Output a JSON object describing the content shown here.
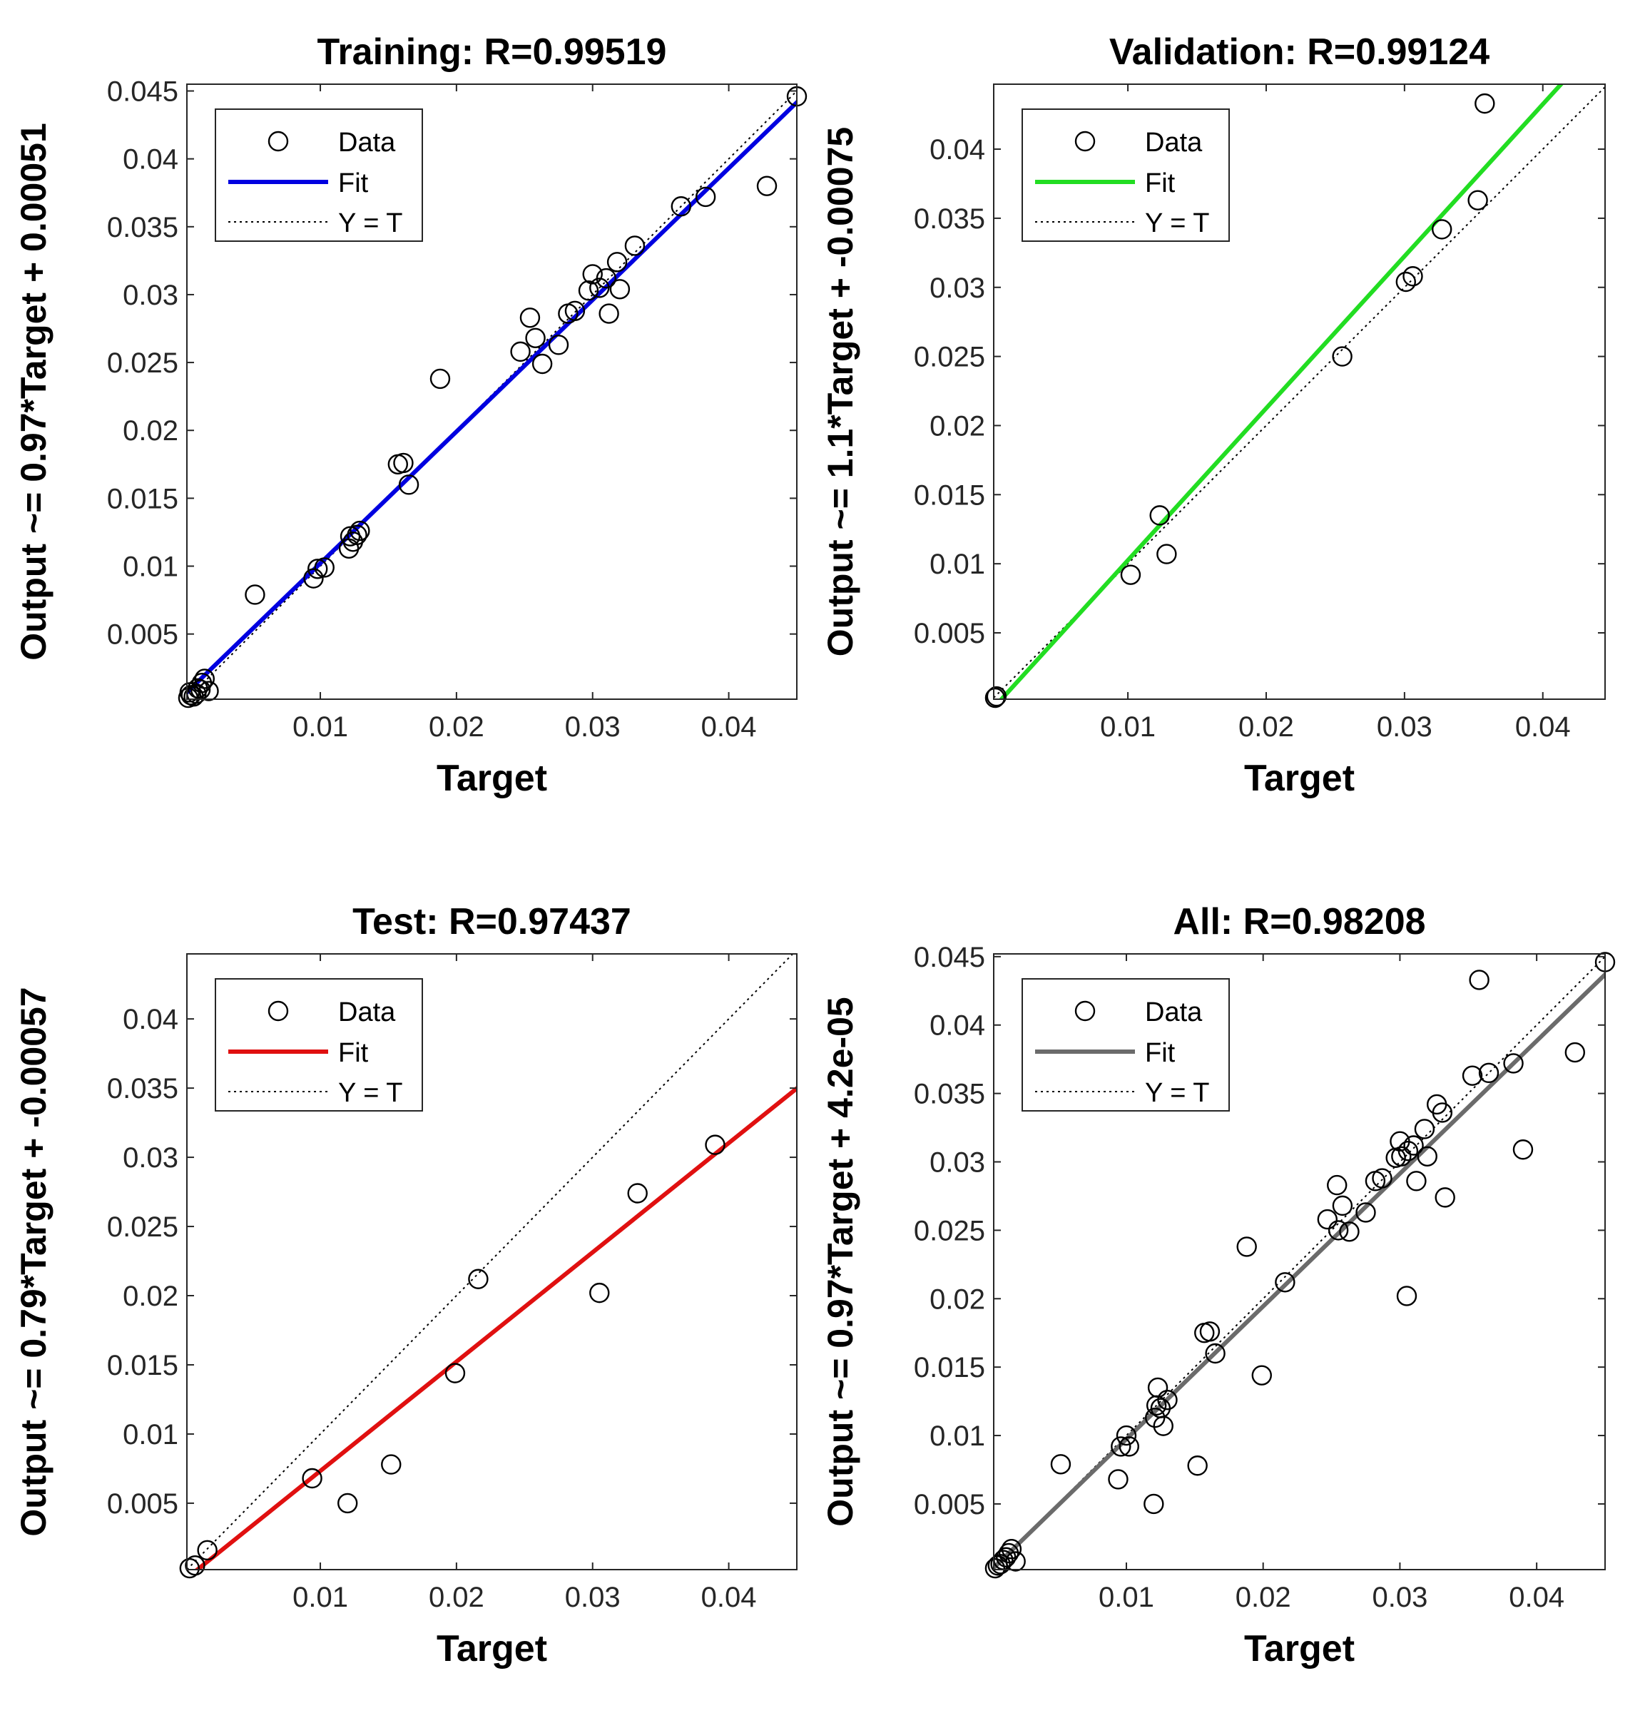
{
  "colors": {
    "axis": "#262626",
    "marker": "#000000",
    "identity": "#000000",
    "background": "#ffffff"
  },
  "chart_data": [
    {
      "id": "training",
      "type": "scatter",
      "title": "Training: R=0.99519",
      "xlabel": "Target",
      "ylabel": "Output ~= 0.97*Target + 0.00051",
      "xlim": [
        0.0002,
        0.045
      ],
      "ylim": [
        0.0002,
        0.0455
      ],
      "xticks": [
        0.01,
        0.02,
        0.03,
        0.04
      ],
      "xtick_labels": [
        "0.01",
        "0.02",
        "0.03",
        "0.04"
      ],
      "yticks": [
        0.005,
        0.01,
        0.015,
        0.02,
        0.025,
        0.03,
        0.035,
        0.04,
        0.045
      ],
      "ytick_labels": [
        "0.005",
        "0.01",
        "0.015",
        "0.02",
        "0.025",
        "0.03",
        "0.035",
        "0.04",
        "0.045"
      ],
      "fit": {
        "slope": 0.97,
        "intercept": 0.00051,
        "color": "#0000e0"
      },
      "legend": {
        "position": "top-left",
        "entries": [
          "Data",
          "Fit",
          "Y = T"
        ]
      },
      "points": [
        [
          0.0003,
          0.0003
        ],
        [
          0.0005,
          0.0005
        ],
        [
          0.0007,
          0.0004
        ],
        [
          0.0009,
          0.0006
        ],
        [
          0.001,
          0.001
        ],
        [
          0.0012,
          0.0009
        ],
        [
          0.0013,
          0.0014
        ],
        [
          0.0015,
          0.0017
        ],
        [
          0.0018,
          0.0008
        ],
        [
          0.0004,
          0.0007
        ],
        [
          0.0052,
          0.0079
        ],
        [
          0.0095,
          0.0091
        ],
        [
          0.0098,
          0.0098
        ],
        [
          0.0103,
          0.0099
        ],
        [
          0.0121,
          0.0113
        ],
        [
          0.0122,
          0.0122
        ],
        [
          0.0124,
          0.0118
        ],
        [
          0.0127,
          0.0123
        ],
        [
          0.0129,
          0.0126
        ],
        [
          0.0157,
          0.0175
        ],
        [
          0.0161,
          0.0176
        ],
        [
          0.0165,
          0.016
        ],
        [
          0.0188,
          0.0238
        ],
        [
          0.0247,
          0.0258
        ],
        [
          0.0254,
          0.0283
        ],
        [
          0.0258,
          0.0268
        ],
        [
          0.0263,
          0.0249
        ],
        [
          0.0275,
          0.0263
        ],
        [
          0.0282,
          0.0286
        ],
        [
          0.0287,
          0.0288
        ],
        [
          0.0297,
          0.0303
        ],
        [
          0.03,
          0.0315
        ],
        [
          0.0305,
          0.0305
        ],
        [
          0.031,
          0.0312
        ],
        [
          0.0312,
          0.0286
        ],
        [
          0.0318,
          0.0324
        ],
        [
          0.032,
          0.0304
        ],
        [
          0.0331,
          0.0336
        ],
        [
          0.0365,
          0.0365
        ],
        [
          0.0383,
          0.0372
        ],
        [
          0.0428,
          0.038
        ],
        [
          0.045,
          0.0446
        ]
      ]
    },
    {
      "id": "validation",
      "type": "scatter",
      "title": "Validation: R=0.99124",
      "xlabel": "Target",
      "ylabel": "Output ~= 1.1*Target + -0.00075",
      "xlim": [
        0.0003,
        0.0445
      ],
      "ylim": [
        0.0002,
        0.0447
      ],
      "xticks": [
        0.01,
        0.02,
        0.03,
        0.04
      ],
      "xtick_labels": [
        "0.01",
        "0.02",
        "0.03",
        "0.04"
      ],
      "yticks": [
        0.005,
        0.01,
        0.015,
        0.02,
        0.025,
        0.03,
        0.035,
        0.04
      ],
      "ytick_labels": [
        "0.005",
        "0.01",
        "0.015",
        "0.02",
        "0.025",
        "0.03",
        "0.035",
        "0.04"
      ],
      "fit": {
        "slope": 1.1,
        "intercept": -0.00075,
        "color": "#22dd22"
      },
      "legend": {
        "position": "top-left",
        "entries": [
          "Data",
          "Fit",
          "Y = T"
        ]
      },
      "points": [
        [
          0.0004,
          0.0003
        ],
        [
          0.0005,
          0.0004
        ],
        [
          0.0102,
          0.0092
        ],
        [
          0.0123,
          0.0135
        ],
        [
          0.0128,
          0.0107
        ],
        [
          0.0255,
          0.025
        ],
        [
          0.0301,
          0.0304
        ],
        [
          0.0306,
          0.0308
        ],
        [
          0.0327,
          0.0342
        ],
        [
          0.0353,
          0.0363
        ],
        [
          0.0358,
          0.0433
        ]
      ]
    },
    {
      "id": "test",
      "type": "scatter",
      "title": "Test: R=0.97437",
      "xlabel": "Target",
      "ylabel": "Output ~= 0.79*Target + -0.00057",
      "xlim": [
        0.0002,
        0.045
      ],
      "ylim": [
        0.0002,
        0.0447
      ],
      "xticks": [
        0.01,
        0.02,
        0.03,
        0.04
      ],
      "xtick_labels": [
        "0.01",
        "0.02",
        "0.03",
        "0.04"
      ],
      "yticks": [
        0.005,
        0.01,
        0.015,
        0.02,
        0.025,
        0.03,
        0.035,
        0.04
      ],
      "ytick_labels": [
        "0.005",
        "0.01",
        "0.015",
        "0.02",
        "0.025",
        "0.03",
        "0.035",
        "0.04"
      ],
      "fit": {
        "slope": 0.79,
        "intercept": -0.00057,
        "color": "#e01010"
      },
      "legend": {
        "position": "top-left",
        "entries": [
          "Data",
          "Fit",
          "Y = T"
        ]
      },
      "points": [
        [
          0.0004,
          0.0003
        ],
        [
          0.0008,
          0.0005
        ],
        [
          0.0017,
          0.0016
        ],
        [
          0.0094,
          0.0068
        ],
        [
          0.012,
          0.005
        ],
        [
          0.0152,
          0.0078
        ],
        [
          0.0199,
          0.0144
        ],
        [
          0.0216,
          0.0212
        ],
        [
          0.0305,
          0.0202
        ],
        [
          0.0333,
          0.0274
        ],
        [
          0.039,
          0.0309
        ]
      ]
    },
    {
      "id": "all",
      "type": "scatter",
      "title": "All: R=0.98208",
      "xlabel": "Target",
      "ylabel": "Output ~= 0.97*Target + 4.2e-05",
      "xlim": [
        0.0003,
        0.045
      ],
      "ylim": [
        0.0002,
        0.0452
      ],
      "xticks": [
        0.01,
        0.02,
        0.03,
        0.04
      ],
      "xtick_labels": [
        "0.01",
        "0.02",
        "0.03",
        "0.04"
      ],
      "yticks": [
        0.005,
        0.01,
        0.015,
        0.02,
        0.025,
        0.03,
        0.035,
        0.04,
        0.045
      ],
      "ytick_labels": [
        "0.005",
        "0.01",
        "0.015",
        "0.02",
        "0.025",
        "0.03",
        "0.035",
        "0.04",
        "0.045"
      ],
      "fit": {
        "slope": 0.97,
        "intercept": 4.2e-05,
        "color": "#6b6b6b"
      },
      "legend": {
        "position": "top-left",
        "entries": [
          "Data",
          "Fit",
          "Y = T"
        ]
      },
      "points": [
        [
          0.0004,
          0.0003
        ],
        [
          0.0006,
          0.0005
        ],
        [
          0.0008,
          0.0006
        ],
        [
          0.001,
          0.0009
        ],
        [
          0.0012,
          0.0011
        ],
        [
          0.0014,
          0.0014
        ],
        [
          0.0016,
          0.0017
        ],
        [
          0.0019,
          0.0008
        ],
        [
          0.0052,
          0.0079
        ],
        [
          0.0094,
          0.0068
        ],
        [
          0.0096,
          0.0092
        ],
        [
          0.01,
          0.01
        ],
        [
          0.0102,
          0.0092
        ],
        [
          0.012,
          0.005
        ],
        [
          0.0121,
          0.0113
        ],
        [
          0.0122,
          0.0122
        ],
        [
          0.0123,
          0.0135
        ],
        [
          0.0125,
          0.012
        ],
        [
          0.0127,
          0.0107
        ],
        [
          0.013,
          0.0126
        ],
        [
          0.0152,
          0.0078
        ],
        [
          0.0157,
          0.0175
        ],
        [
          0.0161,
          0.0176
        ],
        [
          0.0165,
          0.016
        ],
        [
          0.0188,
          0.0238
        ],
        [
          0.0199,
          0.0144
        ],
        [
          0.0216,
          0.0212
        ],
        [
          0.0247,
          0.0258
        ],
        [
          0.0254,
          0.0283
        ],
        [
          0.0255,
          0.025
        ],
        [
          0.0258,
          0.0268
        ],
        [
          0.0263,
          0.0249
        ],
        [
          0.0275,
          0.0263
        ],
        [
          0.0282,
          0.0286
        ],
        [
          0.0287,
          0.0288
        ],
        [
          0.0297,
          0.0303
        ],
        [
          0.03,
          0.0315
        ],
        [
          0.0301,
          0.0304
        ],
        [
          0.0305,
          0.0202
        ],
        [
          0.0306,
          0.0308
        ],
        [
          0.031,
          0.0312
        ],
        [
          0.0312,
          0.0286
        ],
        [
          0.0318,
          0.0324
        ],
        [
          0.032,
          0.0304
        ],
        [
          0.0327,
          0.0342
        ],
        [
          0.0331,
          0.0336
        ],
        [
          0.0333,
          0.0274
        ],
        [
          0.0353,
          0.0363
        ],
        [
          0.0358,
          0.0433
        ],
        [
          0.0365,
          0.0365
        ],
        [
          0.0383,
          0.0372
        ],
        [
          0.039,
          0.0309
        ],
        [
          0.0428,
          0.038
        ],
        [
          0.045,
          0.0446
        ]
      ]
    }
  ]
}
